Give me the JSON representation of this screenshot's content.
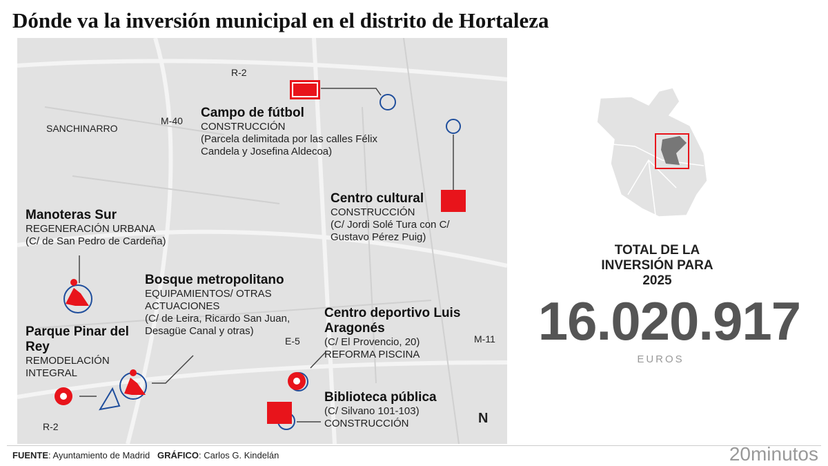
{
  "title": "Dónde va la inversión municipal en el distrito de Hortaleza",
  "map": {
    "roads": [
      "R-2",
      "M-40",
      "M-11",
      "E-5",
      "R-2"
    ],
    "area_label": "SANCHINARRO",
    "north": "N",
    "items": [
      {
        "name": "Campo de fútbol",
        "type": "CONSTRUCCIÓN",
        "address": "(Parcela delimitada por las calles Félix Candela y Josefina Aldecoa)",
        "icon": "football-field-icon"
      },
      {
        "name": "Centro cultural",
        "type": "CONSTRUCCIÓN",
        "address": "(C/ Jordi Solé Tura con C/ Gustavo Pérez Puig)",
        "icon": "building-icon"
      },
      {
        "name": "Manoteras Sur",
        "type": "REGENERACIÓN URBANA",
        "address": "(C/ de San Pedro de Cardeña)",
        "icon": "worker-icon"
      },
      {
        "name": "Bosque metropolitano",
        "type": "EQUIPAMIENTOS/ OTRAS ACTUACIONES",
        "address": "(C/ de Leira, Ricardo San Juan, Desagüe Canal y otras)",
        "icon": "worker-icon"
      },
      {
        "name": "Parque Pinar del Rey",
        "type": "REMODELACIÓN INTEGRAL",
        "address": "",
        "icon": "gear-wrench-icon"
      },
      {
        "name": "Centro deportivo Luis Aragonés",
        "type": "REFORMA PISCINA",
        "address": "(C/ El Provencio, 20)",
        "icon": "gear-wrench-icon"
      },
      {
        "name": "Biblioteca pública",
        "type": "CONSTRUCCIÓN",
        "address": "(C/ Silvano 101-103)",
        "icon": "building-icon"
      }
    ]
  },
  "summary": {
    "label": "TOTAL DE LA INVERSIÓN PARA 2025",
    "value": "16.020.917",
    "unit": "EUROS"
  },
  "footer": {
    "source_label": "FUENTE",
    "source": "Ayuntamiento de Madrid",
    "graphic_label": "GRÁFICO",
    "graphic": "Carlos G. Kindelán",
    "brand": "20minutos"
  },
  "colors": {
    "accent": "#e8141b",
    "marker": "#1f4e9c",
    "highlight": "#777777"
  }
}
